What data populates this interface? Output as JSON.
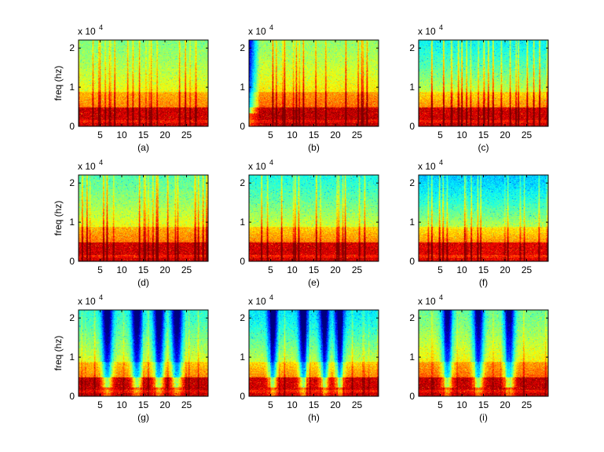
{
  "chart_data": [
    {
      "type": "heatmap",
      "caption": "(a)",
      "ylabel": "freq (hz)",
      "y_exponent_label": "x 10",
      "y_exponent": "4",
      "xticks": [
        "5",
        "10",
        "15",
        "20",
        "25"
      ],
      "yticks": [
        "0",
        "1",
        "2"
      ],
      "xlim": [
        0,
        30
      ],
      "ylim": [
        0,
        22050
      ],
      "colormap": "jet",
      "variant": "a"
    },
    {
      "type": "heatmap",
      "caption": "(b)",
      "ylabel": "",
      "y_exponent_label": "x 10",
      "y_exponent": "4",
      "xticks": [
        "5",
        "10",
        "15",
        "20",
        "25"
      ],
      "yticks": [
        "0",
        "1",
        "2"
      ],
      "xlim": [
        0,
        30
      ],
      "ylim": [
        0,
        22050
      ],
      "colormap": "jet",
      "variant": "b"
    },
    {
      "type": "heatmap",
      "caption": "(c)",
      "ylabel": "",
      "y_exponent_label": "x 10",
      "y_exponent": "4",
      "xticks": [
        "5",
        "10",
        "15",
        "20",
        "25"
      ],
      "yticks": [
        "0",
        "1",
        "2"
      ],
      "xlim": [
        0,
        30
      ],
      "ylim": [
        0,
        22050
      ],
      "colormap": "jet",
      "variant": "c"
    },
    {
      "type": "heatmap",
      "caption": "(d)",
      "ylabel": "freq (hz)",
      "y_exponent_label": "x 10",
      "y_exponent": "4",
      "xticks": [
        "5",
        "10",
        "15",
        "20",
        "25"
      ],
      "yticks": [
        "0",
        "1",
        "2"
      ],
      "xlim": [
        0,
        30
      ],
      "ylim": [
        0,
        22050
      ],
      "colormap": "jet",
      "variant": "d"
    },
    {
      "type": "heatmap",
      "caption": "(e)",
      "ylabel": "",
      "y_exponent_label": "x 10",
      "y_exponent": "4",
      "xticks": [
        "5",
        "10",
        "15",
        "20",
        "25"
      ],
      "yticks": [
        "0",
        "1",
        "2"
      ],
      "xlim": [
        0,
        30
      ],
      "ylim": [
        0,
        22050
      ],
      "colormap": "jet",
      "variant": "e"
    },
    {
      "type": "heatmap",
      "caption": "(f)",
      "ylabel": "",
      "y_exponent_label": "x 10",
      "y_exponent": "4",
      "xticks": [
        "5",
        "10",
        "15",
        "20",
        "25"
      ],
      "yticks": [
        "0",
        "1",
        "2"
      ],
      "xlim": [
        0,
        30
      ],
      "ylim": [
        0,
        22050
      ],
      "colormap": "jet",
      "variant": "f"
    },
    {
      "type": "heatmap",
      "caption": "(g)",
      "ylabel": "freq (hz)",
      "y_exponent_label": "x 10",
      "y_exponent": "4",
      "xticks": [
        "5",
        "10",
        "15",
        "20",
        "25"
      ],
      "yticks": [
        "0",
        "1",
        "2"
      ],
      "xlim": [
        0,
        30
      ],
      "ylim": [
        0,
        22050
      ],
      "colormap": "jet",
      "variant": "g"
    },
    {
      "type": "heatmap",
      "caption": "(h)",
      "ylabel": "",
      "y_exponent_label": "x 10",
      "y_exponent": "4",
      "xticks": [
        "5",
        "10",
        "15",
        "20",
        "25"
      ],
      "yticks": [
        "0",
        "1",
        "2"
      ],
      "xlim": [
        0,
        30
      ],
      "ylim": [
        0,
        22050
      ],
      "colormap": "jet",
      "variant": "h"
    },
    {
      "type": "heatmap",
      "caption": "(i)",
      "ylabel": "",
      "y_exponent_label": "x 10",
      "y_exponent": "4",
      "xticks": [
        "5",
        "10",
        "15",
        "20",
        "25"
      ],
      "yticks": [
        "0",
        "1",
        "2"
      ],
      "xlim": [
        0,
        30
      ],
      "ylim": [
        0,
        22050
      ],
      "colormap": "jet",
      "variant": "i"
    }
  ]
}
